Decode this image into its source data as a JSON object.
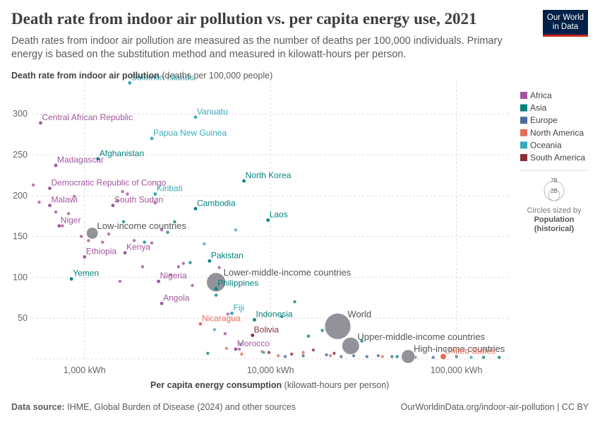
{
  "header": {
    "title": "Death rate from indoor air pollution vs. per capita energy use, 2021",
    "subtitle": "Death rates from indoor air pollution are measured as the number of deaths per 100,000 individuals. Primary energy is based on the substitution method and measured in kilowatt-hours per person.",
    "logo_line1": "Our World",
    "logo_line2": "in Data"
  },
  "footer": {
    "source_label": "Data source:",
    "source_text": "IHME, Global Burden of Disease (2024) and other sources",
    "url": "OurWorldinData.org/indoor-air-pollution | CC BY"
  },
  "legend": {
    "regions": [
      {
        "name": "Africa",
        "color": "#a2559c"
      },
      {
        "name": "Asia",
        "color": "#00847e"
      },
      {
        "name": "Europe",
        "color": "#4c6a9c"
      },
      {
        "name": "North America",
        "color": "#e56e5a"
      },
      {
        "name": "Oceania",
        "color": "#38aaba"
      },
      {
        "name": "South America",
        "color": "#883039"
      }
    ],
    "size_big": "7B",
    "size_small": "2B",
    "size_caption_1": "Circles sized by",
    "size_caption_2": "Population",
    "size_caption_3": "(historical)"
  },
  "chart_data": {
    "type": "scatter",
    "xscale": "log",
    "xlim": [
      520,
      190000
    ],
    "ylim": [
      0,
      340
    ],
    "ylabel_bold": "Death rate from indoor air pollution",
    "ylabel_unit": "(deaths per 100,000 people)",
    "xlabel_bold": "Per capita energy consumption",
    "xlabel_unit": "(kilowatt-hours per person)",
    "xticks": [
      1000,
      10000,
      100000
    ],
    "xtick_labels": [
      "1,000 kWh",
      "10,000 kWh",
      "100,000 kWh"
    ],
    "yticks": [
      0,
      50,
      100,
      150,
      200,
      250,
      300
    ],
    "ytick_labels": [
      "",
      "50",
      "100",
      "150",
      "200",
      "250",
      "300"
    ],
    "labeled_points": [
      {
        "name": "Solomon Islands",
        "region": "Oceania",
        "x": 1750,
        "y": 338
      },
      {
        "name": "Vanuatu",
        "region": "Oceania",
        "x": 3950,
        "y": 296
      },
      {
        "name": "Central African Republic",
        "region": "Africa",
        "x": 580,
        "y": 289
      },
      {
        "name": "Papua New Guinea",
        "region": "Oceania",
        "x": 2300,
        "y": 270
      },
      {
        "name": "Madagascar",
        "region": "Africa",
        "x": 700,
        "y": 237
      },
      {
        "name": "Afghanistan",
        "region": "Asia",
        "x": 1180,
        "y": 245
      },
      {
        "name": "Democratic Republic of Congo",
        "region": "Africa",
        "x": 650,
        "y": 209
      },
      {
        "name": "North Korea",
        "region": "Asia",
        "x": 7200,
        "y": 218
      },
      {
        "name": "Kiribati",
        "region": "Oceania",
        "x": 2400,
        "y": 202
      },
      {
        "name": "Malawi",
        "region": "Africa",
        "x": 650,
        "y": 188
      },
      {
        "name": "South Sudan",
        "region": "Africa",
        "x": 1420,
        "y": 188
      },
      {
        "name": "Cambodia",
        "region": "Asia",
        "x": 3950,
        "y": 184
      },
      {
        "name": "Laos",
        "region": "Asia",
        "x": 9700,
        "y": 170
      },
      {
        "name": "Niger",
        "region": "Africa",
        "x": 730,
        "y": 163
      },
      {
        "name": "Ethiopia",
        "region": "Africa",
        "x": 1000,
        "y": 125
      },
      {
        "name": "Kenya",
        "region": "Africa",
        "x": 1650,
        "y": 130
      },
      {
        "name": "Pakistan",
        "region": "Asia",
        "x": 4700,
        "y": 120
      },
      {
        "name": "Yemen",
        "region": "Asia",
        "x": 850,
        "y": 98
      },
      {
        "name": "Nigeria",
        "region": "Africa",
        "x": 2500,
        "y": 95
      },
      {
        "name": "Philippines",
        "region": "Asia",
        "x": 5100,
        "y": 86
      },
      {
        "name": "Angola",
        "region": "Africa",
        "x": 2600,
        "y": 68
      },
      {
        "name": "Fiji",
        "region": "Oceania",
        "x": 6200,
        "y": 56
      },
      {
        "name": "Indonesia",
        "region": "Asia",
        "x": 8200,
        "y": 48
      },
      {
        "name": "Nicaragua",
        "region": "North America",
        "x": 4200,
        "y": 43
      },
      {
        "name": "Bolivia",
        "region": "South America",
        "x": 8000,
        "y": 29
      },
      {
        "name": "Morocco",
        "region": "Africa",
        "x": 6500,
        "y": 12
      },
      {
        "name": "United States",
        "region": "North America",
        "x": 85000,
        "y": 3
      }
    ],
    "aggregates": [
      {
        "name": "Low-income countries",
        "x": 1100,
        "y": 154,
        "pop_b": 0.7
      },
      {
        "name": "Lower-middle-income countries",
        "x": 5100,
        "y": 94,
        "pop_b": 3.4
      },
      {
        "name": "World",
        "x": 23000,
        "y": 40,
        "pop_b": 7.9
      },
      {
        "name": "Upper-middle-income countries",
        "x": 27000,
        "y": 16,
        "pop_b": 2.6
      },
      {
        "name": "High-income countries",
        "x": 55000,
        "y": 3,
        "pop_b": 1.2
      }
    ],
    "unlabeled_points": [
      {
        "region": "Africa",
        "x": 530,
        "y": 213
      },
      {
        "region": "Africa",
        "x": 570,
        "y": 192
      },
      {
        "region": "Africa",
        "x": 700,
        "y": 180
      },
      {
        "region": "Africa",
        "x": 760,
        "y": 163
      },
      {
        "region": "Africa",
        "x": 820,
        "y": 178
      },
      {
        "region": "Africa",
        "x": 880,
        "y": 199
      },
      {
        "region": "Africa",
        "x": 960,
        "y": 150
      },
      {
        "region": "Africa",
        "x": 1050,
        "y": 145
      },
      {
        "region": "Africa",
        "x": 1250,
        "y": 143
      },
      {
        "region": "Africa",
        "x": 1350,
        "y": 153
      },
      {
        "region": "Africa",
        "x": 1500,
        "y": 194
      },
      {
        "region": "Africa",
        "x": 1600,
        "y": 205
      },
      {
        "region": "Africa",
        "x": 1700,
        "y": 202
      },
      {
        "region": "Africa",
        "x": 1850,
        "y": 145
      },
      {
        "region": "Africa",
        "x": 2050,
        "y": 113
      },
      {
        "region": "Africa",
        "x": 2300,
        "y": 142
      },
      {
        "region": "Africa",
        "x": 2400,
        "y": 191
      },
      {
        "region": "Africa",
        "x": 2600,
        "y": 158
      },
      {
        "region": "Africa",
        "x": 2900,
        "y": 103
      },
      {
        "region": "Africa",
        "x": 3200,
        "y": 113
      },
      {
        "region": "Africa",
        "x": 3400,
        "y": 117
      },
      {
        "region": "Africa",
        "x": 3800,
        "y": 90
      },
      {
        "region": "Africa",
        "x": 5300,
        "y": 112
      },
      {
        "region": "Africa",
        "x": 5700,
        "y": 31
      },
      {
        "region": "Africa",
        "x": 5900,
        "y": 55
      },
      {
        "region": "Africa",
        "x": 1550,
        "y": 95
      },
      {
        "region": "Africa",
        "x": 6800,
        "y": 12
      },
      {
        "region": "Asia",
        "x": 1620,
        "y": 168
      },
      {
        "region": "Asia",
        "x": 2100,
        "y": 143
      },
      {
        "region": "Asia",
        "x": 2800,
        "y": 155
      },
      {
        "region": "Asia",
        "x": 3050,
        "y": 168
      },
      {
        "region": "Asia",
        "x": 3700,
        "y": 118
      },
      {
        "region": "Asia",
        "x": 5100,
        "y": 78
      },
      {
        "region": "Asia",
        "x": 4600,
        "y": 7
      },
      {
        "region": "Asia",
        "x": 11500,
        "y": 52
      },
      {
        "region": "Asia",
        "x": 13500,
        "y": 70
      },
      {
        "region": "Asia",
        "x": 16000,
        "y": 28
      },
      {
        "region": "Asia",
        "x": 19000,
        "y": 35
      },
      {
        "region": "Asia",
        "x": 31000,
        "y": 22
      },
      {
        "region": "Asia",
        "x": 48000,
        "y": 3
      },
      {
        "region": "Asia",
        "x": 140000,
        "y": 2
      },
      {
        "region": "Asia",
        "x": 170000,
        "y": 2
      },
      {
        "region": "Europe",
        "x": 12000,
        "y": 3
      },
      {
        "region": "Europe",
        "x": 15000,
        "y": 4
      },
      {
        "region": "Europe",
        "x": 20000,
        "y": 5
      },
      {
        "region": "Europe",
        "x": 24000,
        "y": 3
      },
      {
        "region": "Europe",
        "x": 28000,
        "y": 4
      },
      {
        "region": "Europe",
        "x": 33000,
        "y": 3
      },
      {
        "region": "Europe",
        "x": 38000,
        "y": 4
      },
      {
        "region": "Europe",
        "x": 45000,
        "y": 3
      },
      {
        "region": "Europe",
        "x": 60000,
        "y": 2
      },
      {
        "region": "Europe",
        "x": 75000,
        "y": 2
      },
      {
        "region": "Europe",
        "x": 100000,
        "y": 3
      },
      {
        "region": "North America",
        "x": 5800,
        "y": 13
      },
      {
        "region": "North America",
        "x": 7000,
        "y": 6
      },
      {
        "region": "North America",
        "x": 9000,
        "y": 9
      },
      {
        "region": "North America",
        "x": 11000,
        "y": 4
      },
      {
        "region": "North America",
        "x": 15000,
        "y": 8
      },
      {
        "region": "North America",
        "x": 21000,
        "y": 4
      },
      {
        "region": "North America",
        "x": 40000,
        "y": 3
      },
      {
        "region": "Oceania",
        "x": 4400,
        "y": 141
      },
      {
        "region": "Oceania",
        "x": 6500,
        "y": 158
      },
      {
        "region": "Oceania",
        "x": 5000,
        "y": 36
      },
      {
        "region": "Oceania",
        "x": 6900,
        "y": 18
      },
      {
        "region": "Oceania",
        "x": 9200,
        "y": 8
      },
      {
        "region": "Oceania",
        "x": 120000,
        "y": 2
      },
      {
        "region": "South America",
        "x": 9800,
        "y": 8
      },
      {
        "region": "South America",
        "x": 13000,
        "y": 6
      },
      {
        "region": "South America",
        "x": 17000,
        "y": 11
      },
      {
        "region": "South America",
        "x": 22000,
        "y": 7
      }
    ]
  }
}
